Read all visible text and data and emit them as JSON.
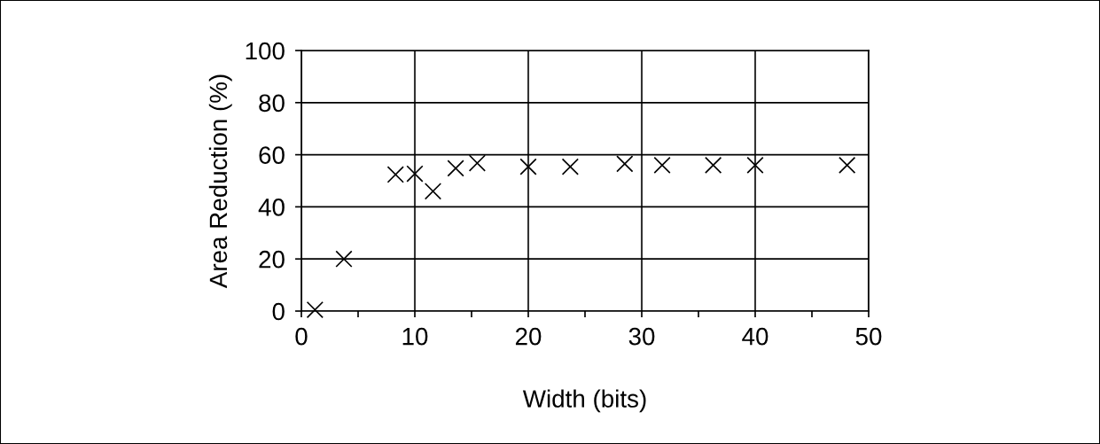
{
  "chart_data": {
    "type": "scatter",
    "xlabel": "Width (bits)",
    "ylabel": "Area Reduction (%)",
    "x": [
      1.2,
      3.75,
      8.3,
      10,
      11.6,
      13.6,
      15.5,
      20,
      23.7,
      28.5,
      31.8,
      36.3,
      40,
      48.1
    ],
    "series": [
      {
        "color": "#000000",
        "values": [
          0.5,
          20,
          52.4,
          52.7,
          46,
          54.8,
          56.8,
          55.4,
          55.4,
          56.5,
          56,
          56,
          56,
          56
        ]
      }
    ],
    "marker": "cross",
    "xlim": [
      0,
      50
    ],
    "ylim": [
      0,
      100
    ],
    "xticks": [
      0,
      {
        "value": 5,
        "label": null
      },
      10,
      {
        "value": 15,
        "label": null
      },
      20,
      {
        "value": 25,
        "label": null
      },
      30,
      {
        "value": 35,
        "label": null
      },
      40,
      {
        "value": 45,
        "label": null
      },
      50
    ],
    "yticks": [
      0,
      20,
      40,
      60,
      80,
      100
    ],
    "grid": true
  }
}
